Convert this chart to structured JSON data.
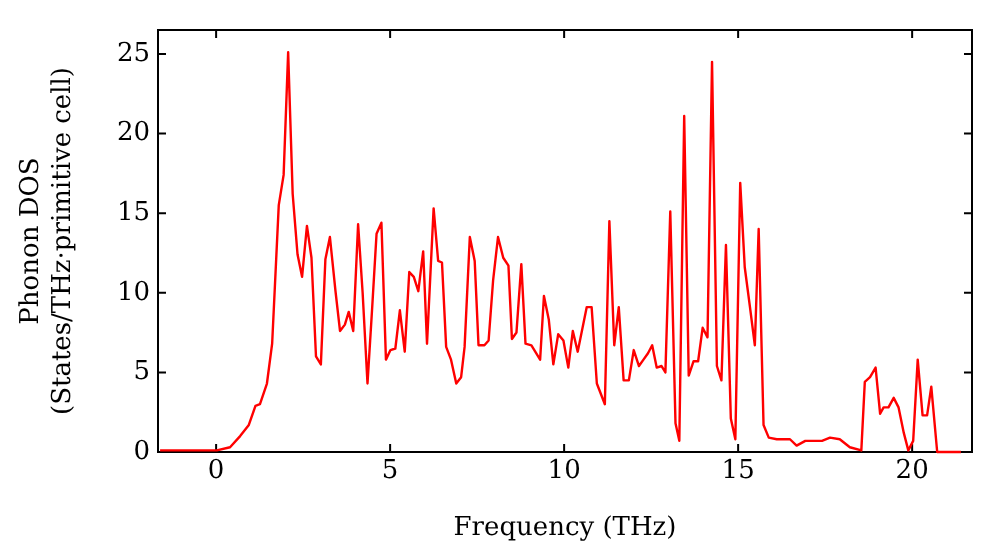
{
  "chart_data": {
    "type": "line",
    "xlabel": "Frequency (THz)",
    "ylabel": "Phonon DOS\n(States/THz·primitive cell)",
    "xlim": [
      -1.67,
      21.72
    ],
    "ylim": [
      0,
      26.5
    ],
    "xticks": [
      0,
      5,
      10,
      15,
      20
    ],
    "yticks": [
      0,
      5,
      10,
      15,
      20,
      25
    ],
    "grid": false,
    "legend": false,
    "marker": "none",
    "line_style": "solid",
    "series": [
      {
        "color": "#ff0000",
        "x": [
          -1.61,
          -0.75,
          0.02,
          0.4,
          0.69,
          0.94,
          1.13,
          1.26,
          1.46,
          1.61,
          1.8,
          1.94,
          2.07,
          2.2,
          2.34,
          2.47,
          2.61,
          2.74,
          2.87,
          3.01,
          3.14,
          3.27,
          3.43,
          3.56,
          3.7,
          3.81,
          3.94,
          4.08,
          4.21,
          4.35,
          4.48,
          4.61,
          4.75,
          4.88,
          5.01,
          5.15,
          5.28,
          5.42,
          5.55,
          5.68,
          5.81,
          5.95,
          6.06,
          6.25,
          6.38,
          6.49,
          6.61,
          6.75,
          6.9,
          7.04,
          7.14,
          7.29,
          7.43,
          7.54,
          7.71,
          7.83,
          7.96,
          8.1,
          8.25,
          8.4,
          8.5,
          8.63,
          8.77,
          8.89,
          9.06,
          9.31,
          9.42,
          9.56,
          9.69,
          9.83,
          9.98,
          10.12,
          10.25,
          10.39,
          10.65,
          10.79,
          10.94,
          11.17,
          11.3,
          11.44,
          11.57,
          11.71,
          11.86,
          12.0,
          12.15,
          12.28,
          12.41,
          12.53,
          12.66,
          12.8,
          12.91,
          13.05,
          13.2,
          13.31,
          13.45,
          13.58,
          13.72,
          13.85,
          13.98,
          14.12,
          14.25,
          14.39,
          14.52,
          14.65,
          14.79,
          14.92,
          15.06,
          15.19,
          15.34,
          15.48,
          15.59,
          15.73,
          15.88,
          16.11,
          16.49,
          16.68,
          16.93,
          17.41,
          17.64,
          17.92,
          18.21,
          18.54,
          18.64,
          18.79,
          18.95,
          19.08,
          19.18,
          19.32,
          19.47,
          19.61,
          19.76,
          19.89,
          20.03,
          20.16,
          20.3,
          20.43,
          20.55,
          20.72,
          21.4
        ],
        "values": [
          0.1,
          0.1,
          0.1,
          0.3,
          1.0,
          1.7,
          2.9,
          3.0,
          4.3,
          6.8,
          15.5,
          17.4,
          25.1,
          16.2,
          12.4,
          11.0,
          14.2,
          12.2,
          6.0,
          5.5,
          12.1,
          13.5,
          10.1,
          7.6,
          8.0,
          8.8,
          7.6,
          14.3,
          10.0,
          4.3,
          8.9,
          13.7,
          14.4,
          5.8,
          6.4,
          6.5,
          8.9,
          6.3,
          11.3,
          11.0,
          10.1,
          12.6,
          6.8,
          15.3,
          12.0,
          11.9,
          6.6,
          5.8,
          4.3,
          4.7,
          6.6,
          13.5,
          12.0,
          6.7,
          6.7,
          7.0,
          10.8,
          13.5,
          12.2,
          11.7,
          7.1,
          7.5,
          11.8,
          6.8,
          6.7,
          5.8,
          9.8,
          8.3,
          5.5,
          7.4,
          7.0,
          5.3,
          7.6,
          6.3,
          9.1,
          9.1,
          4.3,
          3.0,
          14.5,
          6.7,
          9.1,
          4.5,
          4.5,
          6.4,
          5.4,
          5.8,
          6.2,
          6.7,
          5.3,
          5.4,
          5.0,
          15.1,
          1.8,
          0.7,
          21.1,
          4.8,
          5.7,
          5.7,
          7.8,
          7.2,
          24.5,
          5.4,
          4.5,
          13.0,
          2.1,
          0.8,
          16.9,
          11.6,
          9.1,
          6.7,
          14.0,
          1.7,
          0.9,
          0.8,
          0.8,
          0.4,
          0.7,
          0.7,
          0.9,
          0.8,
          0.3,
          0.1,
          4.4,
          4.7,
          5.3,
          2.4,
          2.8,
          2.8,
          3.4,
          2.8,
          1.2,
          0.1,
          0.7,
          5.8,
          2.3,
          2.3,
          4.1,
          0,
          0
        ]
      }
    ]
  }
}
